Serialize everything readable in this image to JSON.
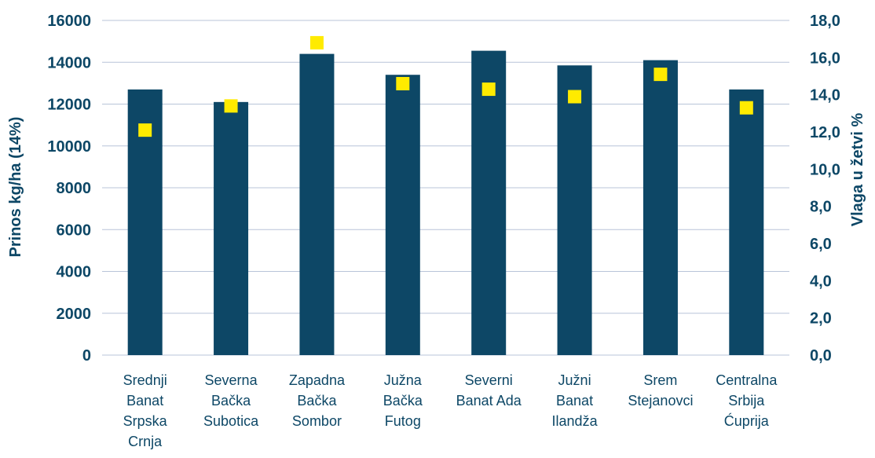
{
  "chart_data": {
    "type": "bar",
    "categories": [
      [
        "Srednji",
        "Banat",
        "Srpska",
        "Crnja"
      ],
      [
        "Severna",
        "Bačka",
        "Subotica"
      ],
      [
        "Zapadna",
        "Bačka",
        "Sombor"
      ],
      [
        "Južna",
        "Bačka",
        "Futog"
      ],
      [
        "Severni",
        "Banat Ada"
      ],
      [
        "Južni",
        "Banat",
        "Ilandža"
      ],
      [
        "Srem",
        "Stejanovci"
      ],
      [
        "Centralna",
        "Srbija",
        "Ćuprija"
      ]
    ],
    "series": [
      {
        "type": "bar",
        "axis": "left",
        "color": "#0d4766",
        "values": [
          12700,
          12100,
          14400,
          13400,
          14550,
          13850,
          14100,
          12700
        ]
      },
      {
        "type": "marker",
        "axis": "right",
        "color": "#ffeb00",
        "values": [
          12.1,
          13.4,
          16.8,
          14.6,
          14.3,
          13.9,
          15.1,
          13.3
        ]
      }
    ],
    "ylabel": "Prinos kg/ha (14%)",
    "y2label": "Vlaga u žetvi %",
    "ylim": [
      0,
      16000
    ],
    "y2lim": [
      0,
      18
    ],
    "yticks": [
      "0",
      "2000",
      "4000",
      "6000",
      "8000",
      "10000",
      "12000",
      "14000",
      "16000"
    ],
    "y2ticks": [
      "0,0",
      "2,0",
      "4,0",
      "6,0",
      "8,0",
      "10,0",
      "12,0",
      "14,0",
      "16,0",
      "18,0"
    ],
    "grid": true,
    "legend": "none"
  }
}
